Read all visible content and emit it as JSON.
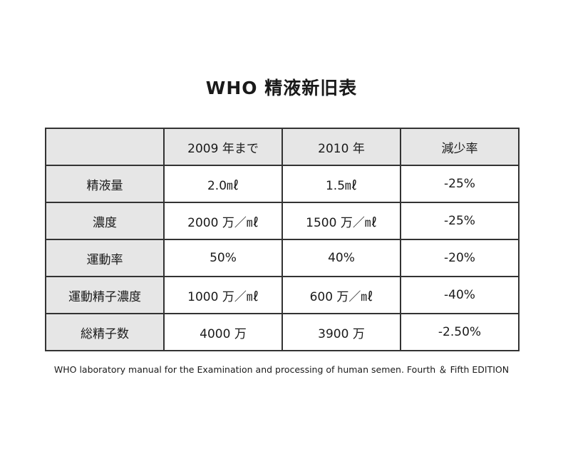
{
  "title": "WHO 精液新旧表",
  "table": {
    "headers": [
      "",
      "2009 年まで",
      "2010 年",
      "減少率"
    ],
    "rows": [
      {
        "label": "精液量",
        "cells": [
          "2.0㎖",
          "1.5㎖",
          "-25%"
        ]
      },
      {
        "label": "濃度",
        "cells": [
          "2000 万／㎖",
          "1500 万／㎖",
          "-25%"
        ]
      },
      {
        "label": "運動率",
        "cells": [
          "50%",
          "40%",
          "-20%"
        ]
      },
      {
        "label": "運動精子濃度",
        "cells": [
          "1000 万／㎖",
          "600 万／㎖",
          "-40%"
        ]
      },
      {
        "label": "総精子数",
        "cells": [
          "4000 万",
          "3900 万",
          "-2.50%"
        ]
      }
    ]
  },
  "caption": "WHO laboratory manual for the Examination and processing of human semen. Fourth ＆ Fifth EDITION"
}
